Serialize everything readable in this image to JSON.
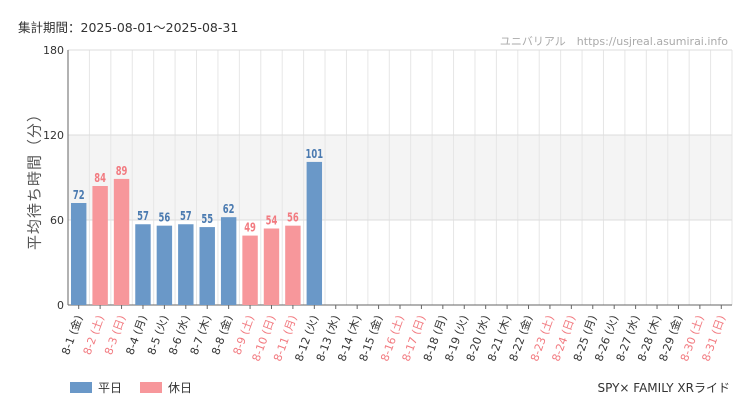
{
  "header": {
    "period": "集計期間：2025-08-01〜2025-08-31",
    "source": "ユニバリアル　https://usjreal.asumirai.info"
  },
  "footer": {
    "attraction": "SPY× FAMILY XRライド"
  },
  "legend": [
    {
      "label": "平日",
      "color": "#6a98c8"
    },
    {
      "label": "休日",
      "color": "#f7979b"
    }
  ],
  "colors": {
    "weekday_label": "#4a7ab0",
    "holiday_label": "#f27a80",
    "axis_label": "#333333"
  },
  "chart_data": {
    "type": "bar",
    "title": "",
    "xlabel": "",
    "ylabel": "平均待ち時間（分）",
    "ylim": [
      0,
      180
    ],
    "yticks": [
      0,
      60,
      120,
      180
    ],
    "categories": [
      "8-1 (金)",
      "8-2 (土)",
      "8-3 (日)",
      "8-4 (月)",
      "8-5 (火)",
      "8-6 (水)",
      "8-7 (木)",
      "8-8 (金)",
      "8-9 (土)",
      "8-10 (日)",
      "8-11 (月)",
      "8-12 (火)",
      "8-13 (水)",
      "8-14 (木)",
      "8-15 (金)",
      "8-16 (土)",
      "8-17 (日)",
      "8-18 (月)",
      "8-19 (火)",
      "8-20 (水)",
      "8-21 (木)",
      "8-22 (金)",
      "8-23 (土)",
      "8-24 (日)",
      "8-25 (月)",
      "8-26 (火)",
      "8-27 (水)",
      "8-28 (木)",
      "8-29 (金)",
      "8-30 (土)",
      "8-31 (日)"
    ],
    "day_type": [
      "weekday",
      "holiday",
      "holiday",
      "weekday",
      "weekday",
      "weekday",
      "weekday",
      "weekday",
      "holiday",
      "holiday",
      "holiday",
      "weekday",
      "weekday",
      "weekday",
      "weekday",
      "holiday",
      "holiday",
      "weekday",
      "weekday",
      "weekday",
      "weekday",
      "weekday",
      "holiday",
      "holiday",
      "weekday",
      "weekday",
      "weekday",
      "weekday",
      "weekday",
      "holiday",
      "holiday"
    ],
    "values": [
      72,
      84,
      89,
      57,
      56,
      57,
      55,
      62,
      49,
      54,
      56,
      101,
      null,
      null,
      null,
      null,
      null,
      null,
      null,
      null,
      null,
      null,
      null,
      null,
      null,
      null,
      null,
      null,
      null,
      null,
      null
    ],
    "grid": true,
    "shaded_band": [
      60,
      120
    ],
    "legend_position": "bottom-left"
  }
}
